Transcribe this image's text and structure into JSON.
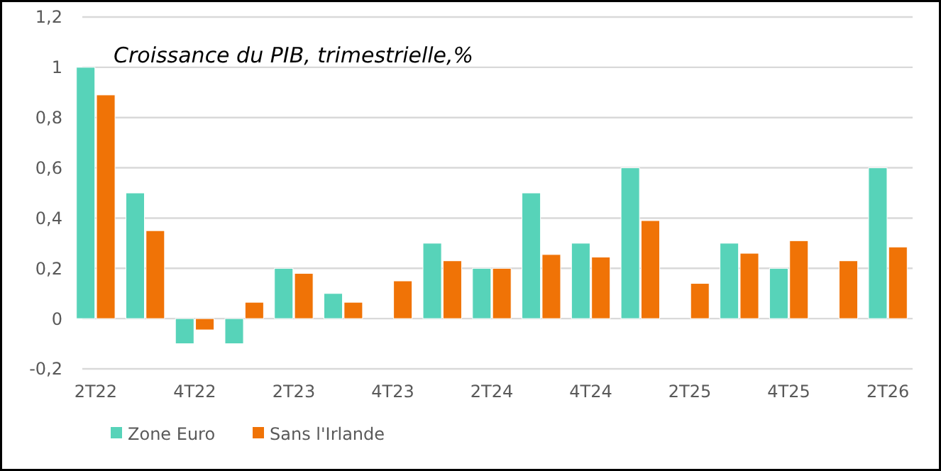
{
  "chart_data": {
    "type": "bar",
    "title": "Croissance du PIB, trimestrielle,%",
    "categories": [
      "2T22",
      null,
      "4T22",
      null,
      "2T23",
      null,
      "4T23",
      null,
      "2T24",
      null,
      "4T24",
      null,
      "2T25",
      null,
      "4T25",
      null,
      "2T26"
    ],
    "series": [
      {
        "name": "Zone Euro",
        "color": "#57d3b9",
        "values": [
          1.0,
          0.5,
          -0.1,
          -0.1,
          0.2,
          0.1,
          0,
          0.3,
          0.2,
          0.5,
          0.3,
          0.6,
          0,
          0.3,
          0.2,
          0,
          0.6
        ]
      },
      {
        "name": "Sans l'Irlande",
        "color": "#f07306",
        "values": [
          0.89,
          0.35,
          -0.045,
          0.065,
          0.18,
          0.065,
          0.15,
          0.23,
          0.2,
          0.255,
          0.245,
          0.39,
          0.14,
          0.26,
          0.31,
          0.23,
          0.285
        ]
      }
    ],
    "ylim": [
      -0.2,
      1.2
    ],
    "yticks": [
      {
        "value": -0.2,
        "label": "-0,2"
      },
      0,
      {
        "value": 0.2,
        "label": "0,2"
      },
      {
        "value": 0.4,
        "label": "0,4"
      },
      {
        "value": 0.6,
        "label": "0,6"
      },
      {
        "value": 0.8,
        "label": "0,8"
      },
      1,
      {
        "value": 1.2,
        "label": "1,2"
      }
    ],
    "grid": "y",
    "legend": "bottom left"
  }
}
